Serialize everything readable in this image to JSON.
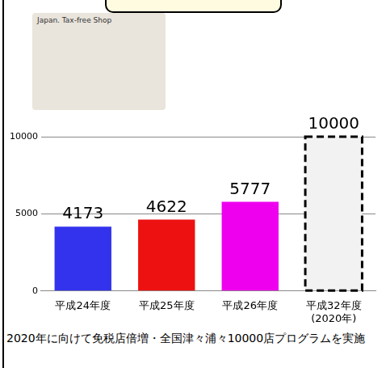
{
  "image_label": "Japan. Tax-free Shop",
  "chart_data": {
    "type": "bar",
    "categories": [
      "平成24年度",
      "平成25年度",
      "平成26年度",
      "平成32年度\n(2020年)"
    ],
    "series": [
      {
        "values": [
          4173,
          4622,
          5777,
          null
        ],
        "colors": [
          "#3333ee",
          "#ee1111",
          "#ee00ee",
          "#f2f2f2"
        ]
      },
      {
        "values": [
          null,
          null,
          null,
          10000
        ],
        "color": "#f2f2f2",
        "line_style": "dashed"
      }
    ],
    "ylim": [
      0,
      10000
    ],
    "yticks": [
      0,
      5000,
      10000
    ],
    "grid": true,
    "data_labels": true,
    "caption": "2020年に向けて免税店倍増・全国津々浦々10000店プログラムを実施"
  }
}
